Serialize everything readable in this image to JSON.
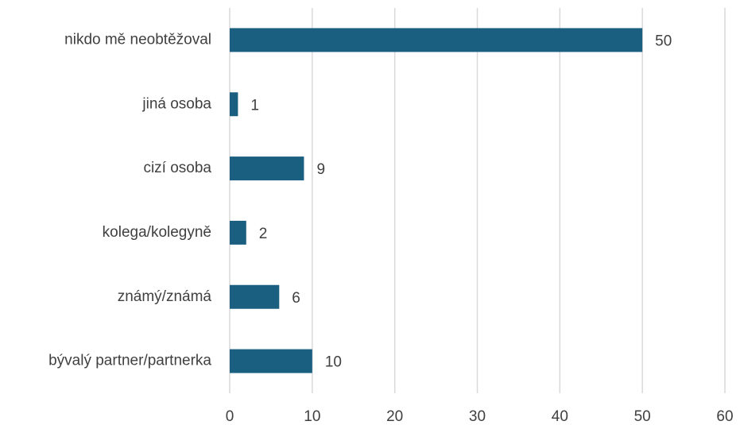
{
  "chart_data": {
    "type": "barh",
    "categories": [
      "nikdo mě neobtěžoval",
      "jiná osoba",
      "cizí osoba",
      "kolega/kolegyně",
      "známý/známá",
      "bývalý partner/partnerka"
    ],
    "values": [
      50,
      1,
      9,
      2,
      6,
      10
    ],
    "color": "#1a5e80",
    "xlim": [
      0,
      60
    ],
    "xticks": [
      0,
      10,
      20,
      30,
      40,
      50,
      60
    ],
    "grid": true,
    "data_labels": true
  }
}
